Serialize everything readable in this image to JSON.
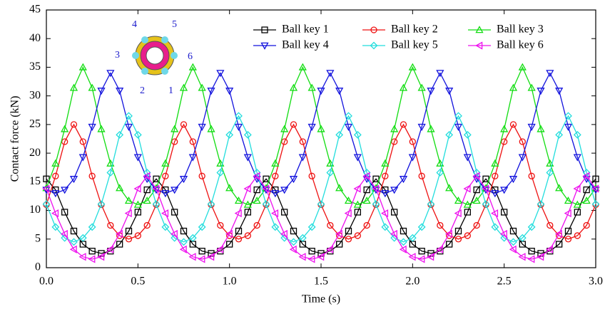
{
  "chart_data": {
    "type": "line",
    "x_label": "Time (s)",
    "y_label": "Contact force (kN)",
    "xlim": [
      0,
      3.0
    ],
    "ylim": [
      0,
      45
    ],
    "xticks": [
      {
        "value": 0,
        "label": "0.0"
      },
      {
        "value": 0.5,
        "label": "0.5"
      },
      {
        "value": 1,
        "label": "1.0"
      },
      {
        "value": 1.5,
        "label": "1.5"
      },
      {
        "value": 2,
        "label": "2.0"
      },
      {
        "value": 2.5,
        "label": "2.5"
      },
      {
        "value": 3,
        "label": "3.0"
      }
    ],
    "yticks": [
      0,
      5,
      10,
      15,
      20,
      25,
      30,
      35,
      40,
      45
    ],
    "inset_labels": [
      "1",
      "2",
      "3",
      "4",
      "5",
      "6"
    ],
    "x": [
      0,
      0.05,
      0.1,
      0.15,
      0.2,
      0.25,
      0.3,
      0.35,
      0.4,
      0.45,
      0.5,
      0.55,
      0.6,
      0.65,
      0.7,
      0.75,
      0.8,
      0.85,
      0.9,
      0.95,
      1,
      1.05,
      1.1,
      1.15,
      1.2,
      1.25,
      1.3,
      1.35,
      1.4,
      1.45,
      1.5,
      1.55,
      1.6,
      1.65,
      1.7,
      1.75,
      1.8,
      1.85,
      1.9,
      1.95,
      2,
      2.05,
      2.1,
      2.15,
      2.2,
      2.25,
      2.3,
      2.35,
      2.4,
      2.45,
      2.5,
      2.55,
      2.6,
      2.65,
      2.7,
      2.75,
      2.8,
      2.85,
      2.9,
      2.95,
      3
    ],
    "series": [
      {
        "name": "Ball key 1",
        "color": "#000000",
        "marker": "square",
        "values": [
          15.5,
          13.6,
          9.7,
          6.4,
          4.1,
          2.9,
          2.5,
          2.9,
          4.1,
          6.4,
          9.7,
          13.6,
          15.5,
          13.6,
          9.7,
          6.4,
          4.1,
          2.9,
          2.5,
          2.9,
          4.1,
          6.4,
          9.7,
          13.6,
          15.5,
          13.6,
          9.7,
          6.4,
          4.1,
          2.9,
          2.5,
          2.9,
          4.1,
          6.4,
          9.7,
          13.6,
          15.5,
          13.6,
          9.7,
          6.4,
          4.1,
          2.9,
          2.5,
          2.9,
          4.1,
          6.4,
          9.7,
          13.6,
          15.5,
          13.6,
          9.7,
          6.4,
          4.1,
          2.9,
          2.5,
          2.9,
          4.1,
          6.4,
          9.7,
          13.6,
          15.5
        ]
      },
      {
        "name": "Ball key 2",
        "color": "#ee1111",
        "marker": "circle",
        "values": [
          11,
          16,
          22,
          25,
          22,
          16,
          11,
          7.4,
          5.6,
          5,
          5.6,
          7.4,
          11,
          16,
          22,
          25,
          22,
          16,
          11,
          7.4,
          5.6,
          5,
          5.6,
          7.4,
          11,
          16,
          22,
          25,
          22,
          16,
          11,
          7.4,
          5.6,
          5,
          5.6,
          7.4,
          11,
          16,
          22,
          25,
          22,
          16,
          11,
          7.4,
          5.6,
          5,
          5.6,
          7.4,
          11,
          16,
          22,
          25,
          22,
          16,
          11,
          7.4,
          5.6,
          5,
          5.6,
          7.4,
          11
        ]
      },
      {
        "name": "Ball key 3",
        "color": "#11dd11",
        "marker": "triangle-up",
        "values": [
          13.9,
          18.2,
          24.2,
          31.4,
          35,
          31.4,
          24.2,
          18.2,
          13.9,
          11.7,
          11,
          11.7,
          13.9,
          18.2,
          24.2,
          31.4,
          35,
          31.4,
          24.2,
          18.2,
          13.9,
          11.7,
          11,
          11.7,
          13.9,
          18.2,
          24.2,
          31.4,
          35,
          31.4,
          24.2,
          18.2,
          13.9,
          11.7,
          11,
          11.7,
          13.9,
          18.2,
          24.2,
          31.4,
          35,
          31.4,
          24.2,
          18.2,
          13.9,
          11.7,
          11,
          11.7,
          13.9,
          18.2,
          24.2,
          31.4,
          35,
          31.4,
          24.2,
          18.2,
          13.9,
          11.7,
          11,
          11.7,
          13.9
        ]
      },
      {
        "name": "Ball key 4",
        "color": "#1111dd",
        "marker": "triangle-down",
        "values": [
          13.6,
          13,
          13.6,
          15.5,
          19.3,
          24.6,
          30.9,
          34,
          30.9,
          24.6,
          19.3,
          15.5,
          13.6,
          13,
          13.6,
          15.5,
          19.3,
          24.6,
          30.9,
          34,
          30.9,
          24.6,
          19.3,
          15.5,
          13.6,
          13,
          13.6,
          15.5,
          19.3,
          24.6,
          30.9,
          34,
          30.9,
          24.6,
          19.3,
          15.5,
          13.6,
          13,
          13.6,
          15.5,
          19.3,
          24.6,
          30.9,
          34,
          30.9,
          24.6,
          19.3,
          15.5,
          13.6,
          13,
          13.6,
          15.5,
          19.3,
          24.6,
          30.9,
          34,
          30.9,
          24.6,
          19.3,
          15.5,
          13.6
        ]
      },
      {
        "name": "Ball key 5",
        "color": "#22dddd",
        "marker": "diamond",
        "values": [
          11.1,
          7.1,
          5.2,
          4.5,
          5.2,
          7.1,
          11.1,
          16.6,
          23.2,
          26.5,
          23.2,
          16.6,
          11.1,
          7.1,
          5.2,
          4.5,
          5.2,
          7.1,
          11.1,
          16.6,
          23.2,
          26.5,
          23.2,
          16.6,
          11.1,
          7.1,
          5.2,
          4.5,
          5.2,
          7.1,
          11.1,
          16.6,
          23.2,
          26.5,
          23.2,
          16.6,
          11.1,
          7.1,
          5.2,
          4.5,
          5.2,
          7.1,
          11.1,
          16.6,
          23.2,
          26.5,
          23.2,
          16.6,
          11.1,
          7.1,
          5.2,
          4.5,
          5.2,
          7.1,
          11.1,
          16.6,
          23.2,
          26.5,
          23.2,
          16.6,
          11.1
        ]
      },
      {
        "name": "Ball key 6",
        "color": "#ee11ee",
        "marker": "triangle-left",
        "values": [
          13.8,
          9.5,
          5.9,
          3.2,
          1.9,
          1.5,
          1.9,
          3.2,
          5.9,
          9.5,
          13.8,
          16,
          13.8,
          9.5,
          5.9,
          3.2,
          1.9,
          1.5,
          1.9,
          3.2,
          5.9,
          9.5,
          13.8,
          16,
          13.8,
          9.5,
          5.9,
          3.2,
          1.9,
          1.5,
          1.9,
          3.2,
          5.9,
          9.5,
          13.8,
          16,
          13.8,
          9.5,
          5.9,
          3.2,
          1.9,
          1.5,
          1.9,
          3.2,
          5.9,
          9.5,
          13.8,
          16,
          13.8,
          9.5,
          5.9,
          3.2,
          1.9,
          1.5,
          1.9,
          3.2,
          5.9,
          9.5,
          13.8,
          16,
          13.8
        ]
      }
    ]
  }
}
